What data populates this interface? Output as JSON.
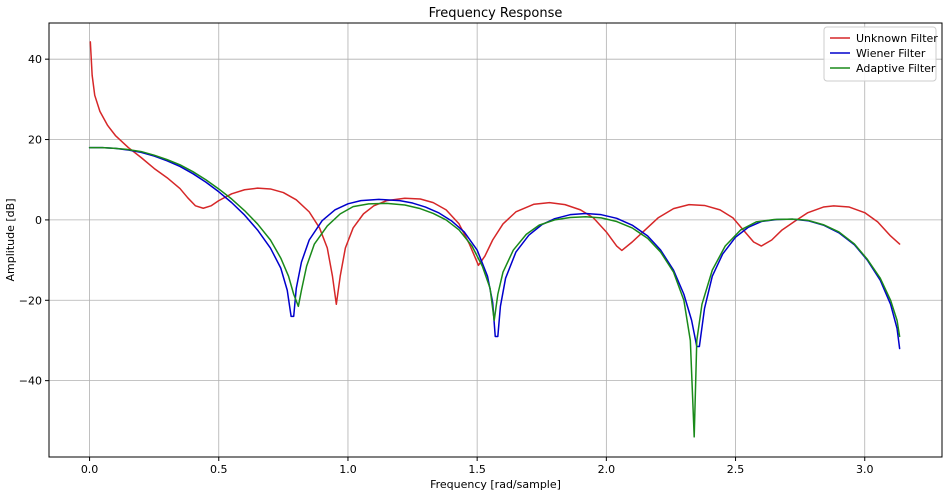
{
  "chart_data": {
    "type": "line",
    "title": "Frequency Response",
    "xlabel": "Frequency [rad/sample]",
    "ylabel": "Amplitude [dB]",
    "xlim": [
      -0.157,
      3.299
    ],
    "ylim": [
      -59,
      49
    ],
    "xticks": [
      0.0,
      0.5,
      1.0,
      1.5,
      2.0,
      2.5,
      3.0
    ],
    "xtick_labels": [
      "0.0",
      "0.5",
      "1.0",
      "1.5",
      "2.0",
      "2.5",
      "3.0"
    ],
    "yticks": [
      -40,
      -20,
      0,
      20,
      40
    ],
    "ytick_labels": [
      "−40",
      "−20",
      "0",
      "20",
      "40"
    ],
    "grid": true,
    "legend_position": "top-right",
    "series": [
      {
        "name": "Unknown Filter",
        "color": "#d62728",
        "points": [
          [
            0.003,
            44.3
          ],
          [
            0.01,
            36
          ],
          [
            0.02,
            31
          ],
          [
            0.04,
            27
          ],
          [
            0.07,
            23.5
          ],
          [
            0.1,
            21
          ],
          [
            0.15,
            18
          ],
          [
            0.2,
            15.5
          ],
          [
            0.25,
            12.8
          ],
          [
            0.3,
            10.5
          ],
          [
            0.35,
            7.8
          ],
          [
            0.38,
            5.5
          ],
          [
            0.41,
            3.5
          ],
          [
            0.44,
            2.9
          ],
          [
            0.47,
            3.5
          ],
          [
            0.5,
            4.8
          ],
          [
            0.55,
            6.5
          ],
          [
            0.6,
            7.5
          ],
          [
            0.65,
            7.9
          ],
          [
            0.7,
            7.7
          ],
          [
            0.75,
            6.8
          ],
          [
            0.8,
            5.0
          ],
          [
            0.85,
            2.0
          ],
          [
            0.89,
            -2.0
          ],
          [
            0.92,
            -7.0
          ],
          [
            0.94,
            -14.0
          ],
          [
            0.955,
            -21.0
          ],
          [
            0.97,
            -14.0
          ],
          [
            0.99,
            -7.0
          ],
          [
            1.02,
            -2.0
          ],
          [
            1.06,
            1.5
          ],
          [
            1.1,
            3.5
          ],
          [
            1.15,
            4.8
          ],
          [
            1.22,
            5.4
          ],
          [
            1.28,
            5.2
          ],
          [
            1.33,
            4.3
          ],
          [
            1.38,
            2.5
          ],
          [
            1.43,
            -1.0
          ],
          [
            1.47,
            -6.0
          ],
          [
            1.505,
            -11.3
          ],
          [
            1.53,
            -9.0
          ],
          [
            1.56,
            -5.0
          ],
          [
            1.6,
            -1.0
          ],
          [
            1.65,
            2.0
          ],
          [
            1.72,
            3.9
          ],
          [
            1.78,
            4.3
          ],
          [
            1.84,
            3.8
          ],
          [
            1.9,
            2.5
          ],
          [
            1.95,
            0.5
          ],
          [
            2.0,
            -3.0
          ],
          [
            2.04,
            -6.5
          ],
          [
            2.06,
            -7.6
          ],
          [
            2.1,
            -5.5
          ],
          [
            2.15,
            -2.5
          ],
          [
            2.2,
            0.5
          ],
          [
            2.26,
            2.8
          ],
          [
            2.32,
            3.8
          ],
          [
            2.38,
            3.6
          ],
          [
            2.44,
            2.5
          ],
          [
            2.49,
            0.5
          ],
          [
            2.53,
            -2.5
          ],
          [
            2.57,
            -5.5
          ],
          [
            2.6,
            -6.5
          ],
          [
            2.64,
            -5.0
          ],
          [
            2.68,
            -2.5
          ],
          [
            2.73,
            -0.3
          ],
          [
            2.78,
            1.8
          ],
          [
            2.84,
            3.2
          ],
          [
            2.88,
            3.5
          ],
          [
            2.94,
            3.2
          ],
          [
            3.0,
            1.8
          ],
          [
            3.05,
            -0.5
          ],
          [
            3.1,
            -4.0
          ],
          [
            3.135,
            -6.0
          ]
        ]
      },
      {
        "name": "Wiener Filter",
        "color": "#0000cc",
        "points": [
          [
            0.0,
            18.0
          ],
          [
            0.05,
            18.0
          ],
          [
            0.1,
            17.8
          ],
          [
            0.15,
            17.4
          ],
          [
            0.2,
            16.8
          ],
          [
            0.25,
            15.9
          ],
          [
            0.3,
            14.7
          ],
          [
            0.35,
            13.3
          ],
          [
            0.4,
            11.5
          ],
          [
            0.45,
            9.4
          ],
          [
            0.5,
            7.0
          ],
          [
            0.55,
            4.3
          ],
          [
            0.6,
            1.2
          ],
          [
            0.65,
            -2.5
          ],
          [
            0.7,
            -7.0
          ],
          [
            0.74,
            -12.0
          ],
          [
            0.765,
            -17.5
          ],
          [
            0.78,
            -24.0
          ],
          [
            0.79,
            -24.0
          ],
          [
            0.8,
            -17.0
          ],
          [
            0.82,
            -10.5
          ],
          [
            0.85,
            -5.0
          ],
          [
            0.9,
            -0.2
          ],
          [
            0.95,
            2.5
          ],
          [
            1.0,
            4.0
          ],
          [
            1.05,
            4.8
          ],
          [
            1.12,
            5.1
          ],
          [
            1.2,
            4.8
          ],
          [
            1.25,
            4.2
          ],
          [
            1.3,
            3.2
          ],
          [
            1.35,
            1.8
          ],
          [
            1.4,
            -0.2
          ],
          [
            1.45,
            -3.0
          ],
          [
            1.5,
            -7.5
          ],
          [
            1.54,
            -14.0
          ],
          [
            1.56,
            -20.5
          ],
          [
            1.57,
            -29.0
          ],
          [
            1.58,
            -29.0
          ],
          [
            1.59,
            -21.5
          ],
          [
            1.61,
            -14.5
          ],
          [
            1.65,
            -8.0
          ],
          [
            1.7,
            -3.8
          ],
          [
            1.75,
            -1.2
          ],
          [
            1.8,
            0.3
          ],
          [
            1.86,
            1.3
          ],
          [
            1.92,
            1.6
          ],
          [
            1.98,
            1.3
          ],
          [
            2.04,
            0.4
          ],
          [
            2.1,
            -1.3
          ],
          [
            2.16,
            -4.0
          ],
          [
            2.21,
            -7.5
          ],
          [
            2.26,
            -12.5
          ],
          [
            2.3,
            -18.5
          ],
          [
            2.33,
            -25.0
          ],
          [
            2.35,
            -31.5
          ],
          [
            2.36,
            -31.5
          ],
          [
            2.38,
            -22.0
          ],
          [
            2.41,
            -14.0
          ],
          [
            2.45,
            -8.5
          ],
          [
            2.5,
            -4.3
          ],
          [
            2.55,
            -1.8
          ],
          [
            2.6,
            -0.4
          ],
          [
            2.66,
            0.1
          ],
          [
            2.72,
            0.2
          ],
          [
            2.78,
            -0.2
          ],
          [
            2.84,
            -1.3
          ],
          [
            2.9,
            -3.2
          ],
          [
            2.96,
            -6.2
          ],
          [
            3.01,
            -10.0
          ],
          [
            3.06,
            -15.0
          ],
          [
            3.1,
            -21.0
          ],
          [
            3.125,
            -27.0
          ],
          [
            3.135,
            -32.0
          ]
        ]
      },
      {
        "name": "Adaptive Filter",
        "color": "#1a8a1a",
        "points": [
          [
            0.0,
            18.0
          ],
          [
            0.05,
            18.0
          ],
          [
            0.1,
            17.8
          ],
          [
            0.15,
            17.5
          ],
          [
            0.2,
            17.0
          ],
          [
            0.25,
            16.1
          ],
          [
            0.3,
            15.0
          ],
          [
            0.35,
            13.7
          ],
          [
            0.4,
            12.0
          ],
          [
            0.45,
            10.0
          ],
          [
            0.5,
            7.7
          ],
          [
            0.55,
            5.2
          ],
          [
            0.6,
            2.3
          ],
          [
            0.65,
            -1.0
          ],
          [
            0.7,
            -5.0
          ],
          [
            0.74,
            -9.5
          ],
          [
            0.77,
            -14.0
          ],
          [
            0.79,
            -18.5
          ],
          [
            0.808,
            -21.5
          ],
          [
            0.82,
            -17.5
          ],
          [
            0.84,
            -11.5
          ],
          [
            0.87,
            -6.0
          ],
          [
            0.92,
            -1.5
          ],
          [
            0.97,
            1.5
          ],
          [
            1.02,
            3.3
          ],
          [
            1.08,
            4.0
          ],
          [
            1.15,
            4.1
          ],
          [
            1.22,
            3.7
          ],
          [
            1.28,
            2.8
          ],
          [
            1.33,
            1.6
          ],
          [
            1.38,
            0.0
          ],
          [
            1.43,
            -2.5
          ],
          [
            1.48,
            -6.5
          ],
          [
            1.52,
            -11.5
          ],
          [
            1.55,
            -17.0
          ],
          [
            1.566,
            -25.0
          ],
          [
            1.58,
            -18.5
          ],
          [
            1.6,
            -13.0
          ],
          [
            1.64,
            -7.5
          ],
          [
            1.69,
            -3.6
          ],
          [
            1.74,
            -1.3
          ],
          [
            1.8,
            0.0
          ],
          [
            1.86,
            0.6
          ],
          [
            1.92,
            0.8
          ],
          [
            1.98,
            0.5
          ],
          [
            2.04,
            -0.4
          ],
          [
            2.1,
            -2.0
          ],
          [
            2.16,
            -4.6
          ],
          [
            2.21,
            -8.0
          ],
          [
            2.26,
            -13.0
          ],
          [
            2.3,
            -20.0
          ],
          [
            2.325,
            -30.0
          ],
          [
            2.34,
            -54.0
          ],
          [
            2.35,
            -30.0
          ],
          [
            2.37,
            -21.0
          ],
          [
            2.41,
            -12.5
          ],
          [
            2.46,
            -6.5
          ],
          [
            2.52,
            -2.5
          ],
          [
            2.58,
            -0.5
          ],
          [
            2.65,
            0.1
          ],
          [
            2.72,
            0.2
          ],
          [
            2.78,
            -0.1
          ],
          [
            2.84,
            -1.2
          ],
          [
            2.9,
            -3.0
          ],
          [
            2.96,
            -6.0
          ],
          [
            3.01,
            -9.8
          ],
          [
            3.06,
            -14.5
          ],
          [
            3.1,
            -20.0
          ],
          [
            3.125,
            -25.0
          ],
          [
            3.135,
            -29.0
          ]
        ]
      }
    ]
  }
}
